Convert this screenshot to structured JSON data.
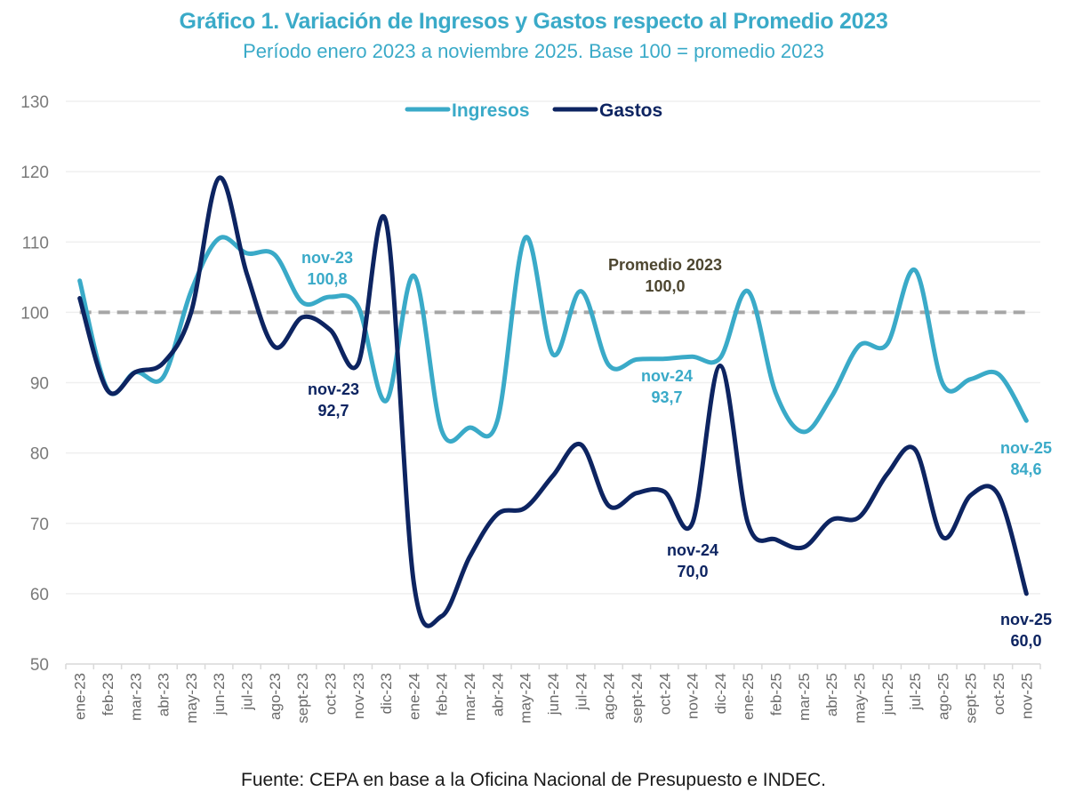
{
  "chart_data": {
    "type": "line",
    "title": "Gráfico 1. Variación de Ingresos y Gastos respecto al Promedio 2023",
    "subtitle": "Período enero 2023 a noviembre 2025. Base 100 = promedio 2023",
    "source": "Fuente: CEPA en base a la Oficina Nacional de Presupuesto e INDEC.",
    "xlabel": "",
    "ylabel": "",
    "ylim": [
      50,
      130
    ],
    "yticks": [
      "50",
      "60",
      "70",
      "80",
      "90",
      "100",
      "110",
      "120",
      "130"
    ],
    "grid": true,
    "legend_position": "top-center",
    "categories": [
      "ene-23",
      "feb-23",
      "mar-23",
      "abr-23",
      "may-23",
      "jun-23",
      "jul-23",
      "ago-23",
      "sept-23",
      "oct-23",
      "nov-23",
      "dic-23",
      "ene-24",
      "feb-24",
      "mar-24",
      "abr-24",
      "may-24",
      "jun-24",
      "jul-24",
      "ago-24",
      "sept-24",
      "oct-24",
      "nov-24",
      "dic-24",
      "ene-25",
      "feb-25",
      "mar-25",
      "abr-25",
      "may-25",
      "jun-25",
      "jul-25",
      "ago-25",
      "sept-25",
      "oct-25",
      "nov-25"
    ],
    "series": [
      {
        "name": "Ingresos",
        "color": "#3aaac8",
        "values": [
          104.5,
          89.0,
          91.5,
          90.8,
          103.0,
          110.5,
          108.4,
          108.2,
          101.4,
          102.2,
          100.8,
          87.4,
          105.2,
          83.2,
          83.6,
          84.6,
          110.6,
          94.0,
          103.0,
          92.5,
          93.3,
          93.4,
          93.7,
          93.5,
          103.0,
          88.5,
          83.0,
          88.0,
          95.3,
          95.5,
          106.0,
          89.8,
          90.5,
          91.2,
          84.6
        ]
      },
      {
        "name": "Gastos",
        "color": "#0d2461",
        "values": [
          102.0,
          88.9,
          91.5,
          92.8,
          100.0,
          119.1,
          105.5,
          95.1,
          99.3,
          97.5,
          92.7,
          112.9,
          61.5,
          56.8,
          65.2,
          71.3,
          72.2,
          76.8,
          81.2,
          72.5,
          74.3,
          74.5,
          70.0,
          92.4,
          70.0,
          67.7,
          66.6,
          70.5,
          70.9,
          77.0,
          80.5,
          68.0,
          74.0,
          74.0,
          60.0
        ]
      }
    ],
    "reference_line": {
      "label": "Promedio 2023",
      "value_label": "100,0",
      "value": 100,
      "color": "#a6a6a6"
    },
    "annotations": [
      {
        "series": "Ingresos",
        "category": "nov-23",
        "label": "nov-23",
        "value_label": "100,8"
      },
      {
        "series": "Gastos",
        "category": "nov-23",
        "label": "nov-23",
        "value_label": "92,7"
      },
      {
        "series": "Ingresos",
        "category": "nov-24",
        "label": "nov-24",
        "value_label": "93,7"
      },
      {
        "series": "Gastos",
        "category": "nov-24",
        "label": "nov-24",
        "value_label": "70,0"
      },
      {
        "series": "Ingresos",
        "category": "nov-25",
        "label": "nov-25",
        "value_label": "84,6"
      },
      {
        "series": "Gastos",
        "category": "nov-25",
        "label": "nov-25",
        "value_label": "60,0"
      }
    ],
    "reference_annotation_color": "#4d4630"
  }
}
